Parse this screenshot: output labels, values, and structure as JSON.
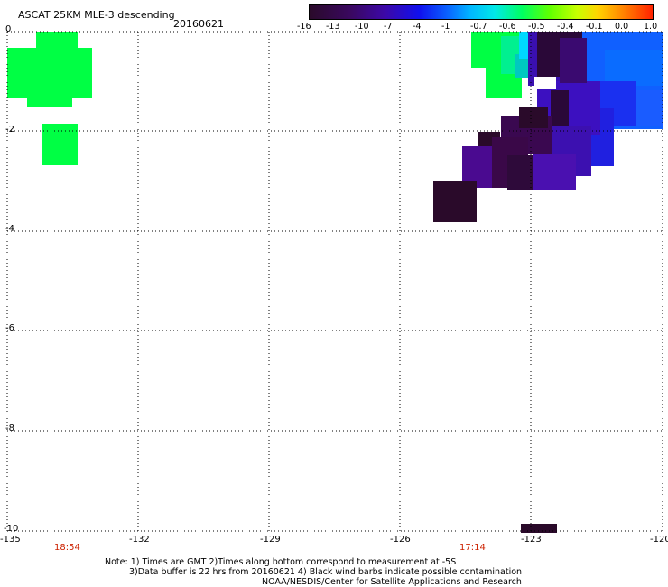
{
  "header": {
    "title": "ASCAT 25KM MLE-3 descending",
    "date": "20160621"
  },
  "colorbar": {
    "labels": [
      "-16",
      "-13",
      "-10",
      "-7",
      "-4",
      "-1",
      "-0.7",
      "-0.6",
      "-0.5",
      "-0.4",
      "-0.1",
      "0.0",
      "1.0"
    ],
    "colors": [
      "#2a0a2a",
      "#3a0860",
      "#3c08a8",
      "#1010ee",
      "#0a60ff",
      "#00b8ff",
      "#00e8e8",
      "#00ff60",
      "#60ff00",
      "#c8ff00",
      "#ffd400",
      "#ff8800",
      "#ff2200"
    ]
  },
  "axes": {
    "x_ticks": [
      "-135",
      "-132",
      "-129",
      "-126",
      "-123",
      "-120"
    ],
    "y_ticks": [
      "0",
      "-2",
      "-4",
      "-6",
      "-8",
      "-10"
    ],
    "times": [
      "18:54",
      "17:14"
    ]
  },
  "notes": {
    "line1": "Note: 1) Times are GMT 2)Times along bottom correspond to measurement at -5S",
    "line2": "3)Data buffer is 22 hrs from 20160621 4) Black wind barbs indicate possible contamination",
    "line3": "NOAA/NESDIS/Center for Satellite Applications and Research"
  }
}
